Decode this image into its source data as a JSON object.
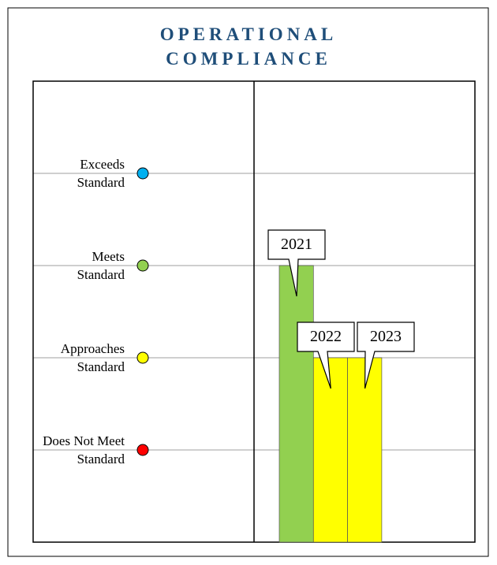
{
  "chart_data": {
    "type": "bar",
    "title": "OPERATIONAL COMPLIANCE",
    "categories": [
      "2021",
      "2022",
      "2023"
    ],
    "values": [
      3,
      2,
      2
    ],
    "colors": [
      "#92d050",
      "#ffff00",
      "#ffff00"
    ],
    "ylim": [
      0,
      5
    ],
    "yticks": [
      {
        "value": 1,
        "label": "Does Not Meet Standard"
      },
      {
        "value": 2,
        "label": "Approaches Standard"
      },
      {
        "value": 3,
        "label": "Meets Standard"
      },
      {
        "value": 4,
        "label": "Exceeds Standard"
      }
    ],
    "ytick_colors": [
      "#ff0000",
      "#ffff00",
      "#92d050",
      "#00b0f0"
    ],
    "grid": true
  }
}
